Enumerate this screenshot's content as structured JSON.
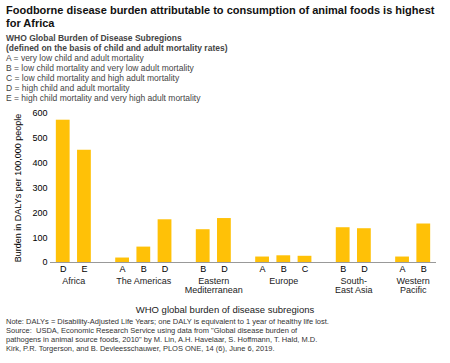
{
  "chart_data": {
    "type": "bar",
    "title": "Foodborne disease burden attributable to consumption of animal foods is highest for Africa",
    "ylabel": "Burden in DALYs per 100,000 people",
    "xlabel": "WHO global burden of disease subregions",
    "categories": [
      "D",
      "E",
      "A",
      "B",
      "D",
      "B",
      "D",
      "A",
      "B",
      "C",
      "B",
      "D",
      "A",
      "B"
    ],
    "groups": [
      "Africa",
      "Africa",
      "The Americas",
      "The Americas",
      "The Americas",
      "Eastern\nMediterranean",
      "Eastern\nMediterranean",
      "Europe",
      "Europe",
      "Europe",
      "South-\nEast Asia",
      "South-\nEast Asia",
      "Western\nPacific",
      "Western\nPacific"
    ],
    "values": [
      573,
      452,
      18,
      62,
      172,
      132,
      177,
      22,
      27,
      25,
      140,
      136,
      22,
      155
    ],
    "color": "#FFC107",
    "ylim": [
      0,
      600
    ],
    "yticks": [
      0,
      100,
      200,
      300,
      400,
      500,
      600
    ],
    "grid": false,
    "annotations": [
      "WHO Global Burden of Disease Subregions",
      "(defined on the basis of child and adult mortality rates)",
      "A = very low child and adult mortality",
      "B = low child mortality and very low adult mortality",
      "C = low child mortality and high adult mortality",
      "D = high child and adult mortality",
      "E = high child mortality and very high adult mortality"
    ],
    "caption": [
      "Note: DALYs = Disability-Adjusted Life Years; one DALY is equivalent to 1 year of healthy life lost.",
      "Source:  USDA, Economic Research Service using data from \"Global disease burden of",
      "pathogens in animal source foods, 2010\" by M. Lin, A.H. Havelaar, S. Hoffmann, T. Hald, M.D.",
      "Kirk, P.R. Torgerson, and B. Devleesschauwer, PLOS ONE, 14 (6), June 6, 2019."
    ]
  }
}
